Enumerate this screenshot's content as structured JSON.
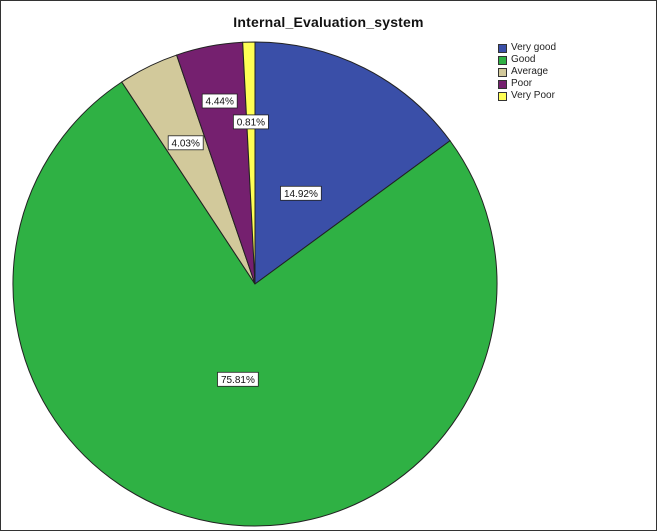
{
  "chart_data": {
    "type": "pie",
    "title": "Internal_Evaluation_system",
    "categories": [
      "Very good",
      "Good",
      "Average",
      "Poor",
      "Very Poor"
    ],
    "values": [
      14.92,
      75.81,
      4.03,
      4.44,
      0.81
    ],
    "labels": [
      "14.92%",
      "75.81%",
      "4.03%",
      "4.44%",
      "0.81%"
    ],
    "colors": [
      "#3a4fa8",
      "#2fb144",
      "#d2c99b",
      "#75206f",
      "#ffff55"
    ],
    "legend_position": "top-right"
  }
}
